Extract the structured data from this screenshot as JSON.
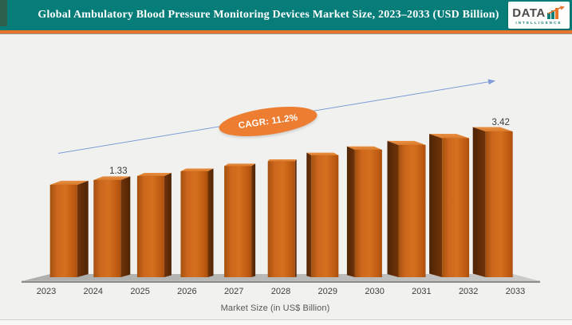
{
  "header": {
    "title": "Global Ambulatory Blood Pressure Monitoring Devices Market Size, 2023–2033 (USD Billion)",
    "logo": {
      "brand": "DATA",
      "tagline": "INTELLIGENCE"
    }
  },
  "chart_data": {
    "type": "bar",
    "title": "Global Ambulatory Blood Pressure Monitoring Devices Market Size, 2023–2033 (USD Billion)",
    "categories": [
      "2023",
      "2024",
      "2025",
      "2026",
      "2027",
      "2028",
      "2029",
      "2030",
      "2031",
      "2032",
      "2033"
    ],
    "values": [
      1.2,
      1.33,
      1.48,
      1.64,
      1.83,
      2.03,
      2.26,
      2.51,
      2.79,
      3.11,
      3.42
    ],
    "labeled_points": {
      "2024": "1.33",
      "2033": "3.42"
    },
    "annotations": {
      "cagr": "CAGR: 11.2%"
    },
    "xlabel": "Market Size (in US$ Billion)",
    "ylabel": "",
    "y_axis_shown": false,
    "gridlines": false,
    "legend": false,
    "style": "3d-perspective-bars, non-zero visual baseline, rising trend arrow",
    "colors": {
      "header_bg": "#077d79",
      "corner_accent": "#2c604d",
      "accent_strip": "#e8742c",
      "bar_front": "#d06c1f",
      "bar_side": "#5f2c08",
      "bar_top": "#e0832f",
      "floor": "#bcbcba",
      "trend_arrow": "#7f9bd9",
      "cagr_badge": "#ed7d31",
      "label_text": "#3d3d3d"
    }
  }
}
